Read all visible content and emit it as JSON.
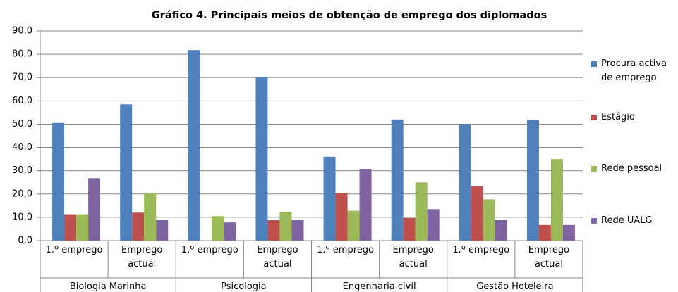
{
  "chart_data": {
    "type": "bar",
    "title": "Gráfico 4. Principais meios de obtenção de emprego dos diplomados",
    "categories": [
      "1.º emprego",
      "Emprego actual",
      "1.º emprego",
      "Emprego actual",
      "1.º emprego",
      "Emprego actual",
      "1.º emprego",
      "Emprego actual"
    ],
    "groups": [
      "Biologia Marinha",
      "Psicologia",
      "Engenharia civil",
      "Gestão Hoteleira"
    ],
    "series": [
      {
        "name": "Procura activa de emprego",
        "color": "#4f81bd",
        "values": [
          50.5,
          58.5,
          81.8,
          70.2,
          36,
          52,
          50,
          51.8
        ]
      },
      {
        "name": "Estágio",
        "color": "#c0504d",
        "values": [
          11.3,
          12,
          null,
          8.8,
          20.5,
          9.7,
          23.5,
          6.7
        ]
      },
      {
        "name": "Rede pessoal",
        "color": "#9bbb59",
        "values": [
          11.3,
          20.2,
          10.5,
          12.3,
          12.8,
          25,
          17.7,
          35
        ]
      },
      {
        "name": "Rede UALG",
        "color": "#8064a2",
        "values": [
          26.8,
          9,
          7.8,
          9,
          30.8,
          13.5,
          8.8,
          6.7
        ]
      }
    ],
    "ylim": [
      0,
      90
    ],
    "yticks": [
      {
        "value": 0,
        "label": "0,0"
      },
      {
        "value": 10,
        "label": "10,0"
      },
      {
        "value": 20,
        "label": "20,0"
      },
      {
        "value": 30,
        "label": "30,0"
      },
      {
        "value": 40,
        "label": "40,0"
      },
      {
        "value": 50,
        "label": "50,0"
      },
      {
        "value": 60,
        "label": "60,0"
      },
      {
        "value": 70,
        "label": "70,0"
      },
      {
        "value": 80,
        "label": "80,0"
      },
      {
        "value": 90,
        "label": "90,0"
      }
    ],
    "grid": true,
    "legend": "right"
  }
}
